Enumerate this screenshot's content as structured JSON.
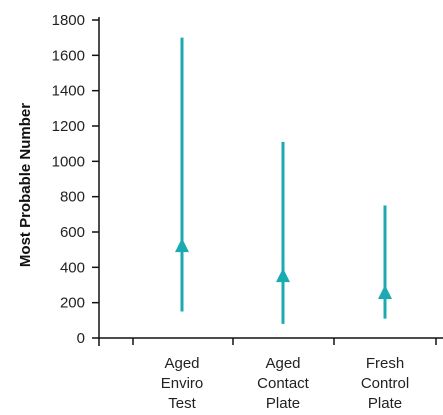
{
  "chart_data": {
    "type": "errorbar",
    "title": "",
    "xlabel": "",
    "ylabel": "Most Probable Number",
    "ylim": [
      0,
      1800
    ],
    "yticks": [
      0,
      200,
      400,
      600,
      800,
      1000,
      1200,
      1400,
      1600,
      1800
    ],
    "grid": false,
    "legend": "none",
    "categories": [
      [
        "Aged",
        "Enviro",
        "Test"
      ],
      [
        "Aged",
        "Contact",
        "Plate"
      ],
      [
        "Fresh",
        "Control",
        "Plate"
      ]
    ],
    "series": [
      {
        "color": "#1aaab0",
        "estimate": [
          520,
          350,
          255
        ],
        "lower": [
          150,
          80,
          110
        ],
        "upper": [
          1700,
          1110,
          750
        ]
      }
    ]
  }
}
